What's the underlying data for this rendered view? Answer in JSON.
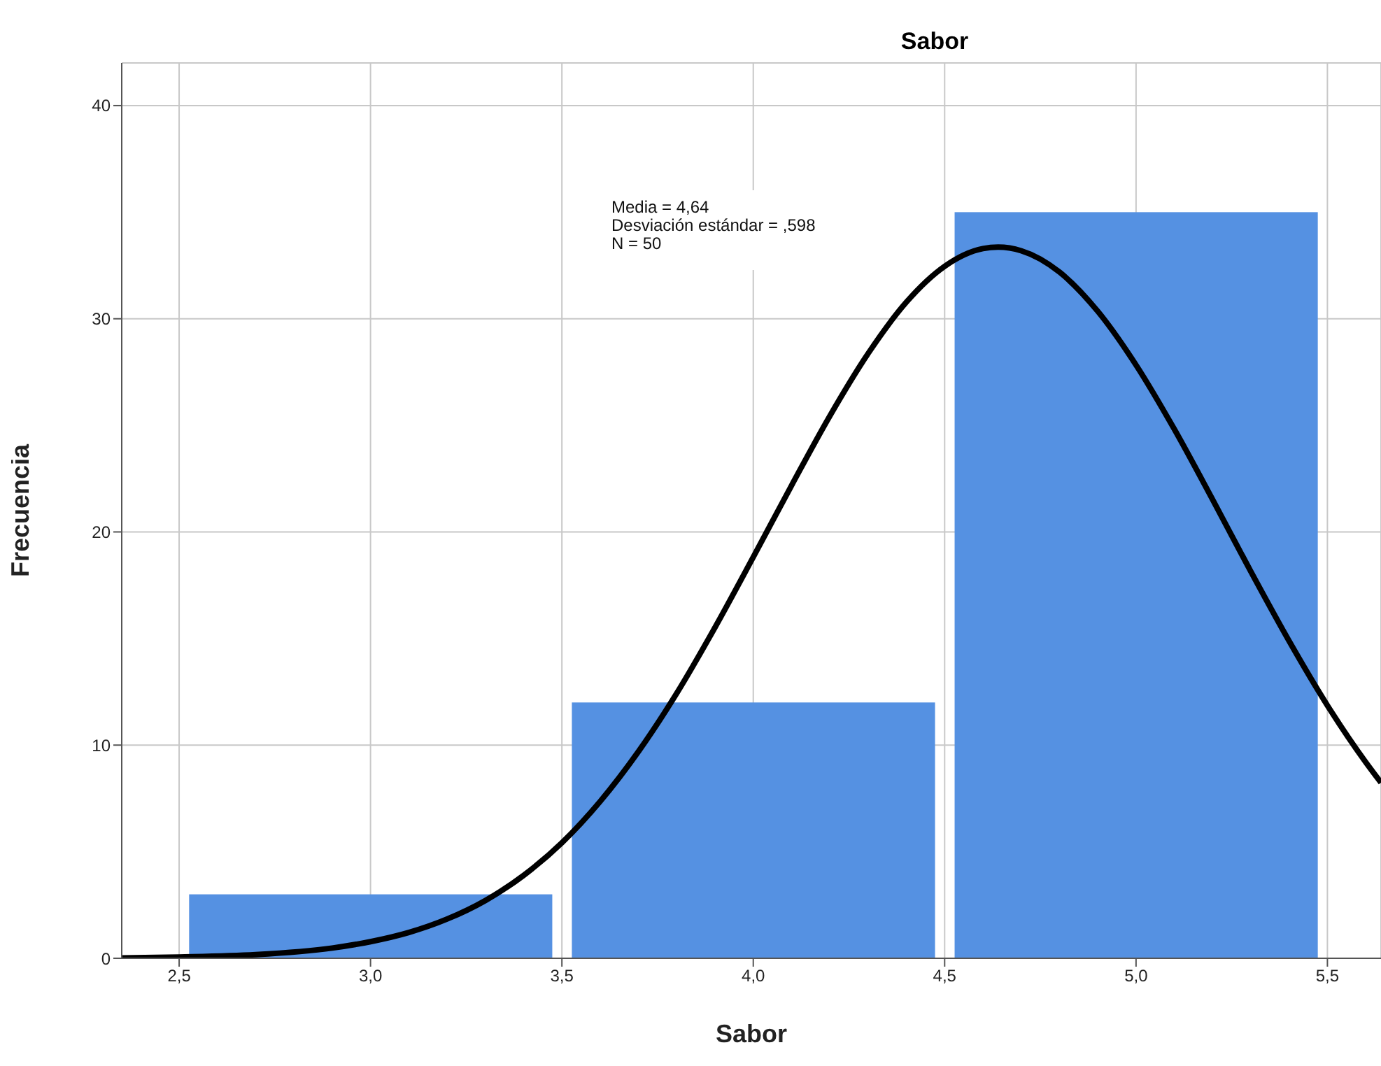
{
  "chart_data": {
    "type": "histogram",
    "title": "Sabor",
    "xlabel": "Sabor",
    "ylabel": "Frecuencia",
    "bins": [
      2.5,
      3.5,
      4.5,
      5.5
    ],
    "values": [
      3,
      12,
      35
    ],
    "color": "#5591e2",
    "series": [
      {
        "type": "line",
        "color": "#000000",
        "x": [
          2.35,
          2.5,
          2.7,
          2.9,
          3.0,
          3.1,
          3.2,
          3.3,
          3.4,
          3.5,
          3.6,
          3.7,
          3.8,
          3.9,
          4.0,
          4.1,
          4.2,
          4.3,
          4.4,
          4.5,
          4.6,
          4.64,
          4.7,
          4.8,
          4.9,
          5.0,
          5.1,
          5.2,
          5.3,
          5.4,
          5.5,
          5.6,
          5.64
        ],
        "values": [
          0.02,
          0.06,
          0.17,
          0.48,
          0.78,
          1.21,
          1.84,
          2.71,
          3.89,
          5.42,
          7.36,
          9.7,
          12.43,
          15.52,
          18.82,
          22.18,
          25.44,
          28.37,
          30.78,
          32.46,
          33.29,
          33.36,
          33.19,
          32.19,
          30.35,
          27.83,
          24.82,
          21.52,
          18.14,
          14.88,
          11.86,
          9.2,
          8.24
        ]
      }
    ],
    "xlim": [
      2.35,
      5.64
    ],
    "xticks": [
      {
        "value": 2.5,
        "label": "2,5"
      },
      {
        "value": 3.0,
        "label": "3,0"
      },
      {
        "value": 3.5,
        "label": "3,5"
      },
      {
        "value": 4.0,
        "label": "4,0"
      },
      {
        "value": 4.5,
        "label": "4,5"
      },
      {
        "value": 5.0,
        "label": "5,0"
      },
      {
        "value": 5.5,
        "label": "5,5"
      }
    ],
    "ylim": [
      0,
      42
    ],
    "yticks": [
      0,
      10,
      20,
      30,
      40
    ],
    "grid": true,
    "annotations": [
      "Media = 4,64",
      "Desviación estándar = ,598",
      "N = 50"
    ]
  }
}
